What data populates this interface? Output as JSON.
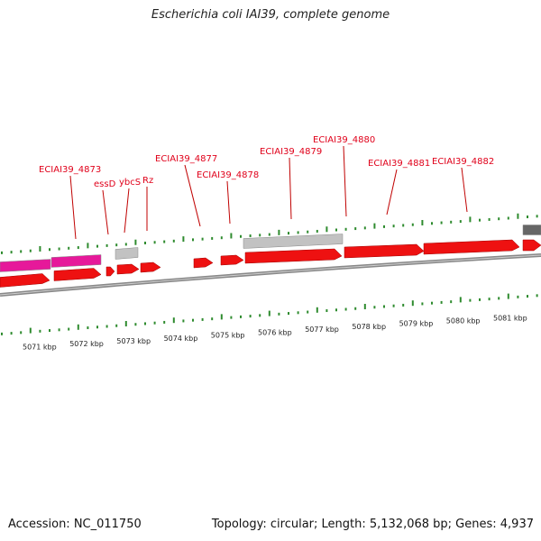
{
  "title": "Escherichia coli IAI39, complete genome",
  "footer": {
    "accession": "Accession: NC_011750",
    "topology": "Topology: circular; Length: 5,132,068 bp; Genes: 4,937"
  },
  "colors": {
    "gene": "#ee1111",
    "pseudo_pink": "#e6199a",
    "gray_feature": "#c2c2c2",
    "dark_feature": "#666666",
    "backbone": "#888888",
    "tick": "#2e8b2e",
    "label": "#e0001a"
  },
  "kbp_labels": [
    "5071 kbp",
    "5072 kbp",
    "5073 kbp",
    "5074 kbp",
    "5075 kbp",
    "5076 kbp",
    "5077 kbp",
    "5078 kbp",
    "5079 kbp",
    "5080 kbp",
    "5081 kbp"
  ],
  "gene_labels": [
    "ECIAI39_4873",
    "essD",
    "ybcS",
    "Rz",
    "ECIAI39_4877",
    "ECIAI39_4878",
    "ECIAI39_4879",
    "ECIAI39_4880",
    "ECIAI39_4881",
    "ECIAI39_4882"
  ]
}
